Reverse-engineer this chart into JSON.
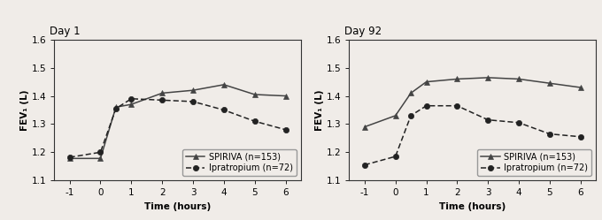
{
  "day1": {
    "title": "Day 1",
    "spiriva_x": [
      -1,
      0,
      0.5,
      1,
      2,
      3,
      4,
      5,
      6
    ],
    "spiriva_y": [
      1.178,
      1.178,
      1.36,
      1.37,
      1.41,
      1.42,
      1.44,
      1.405,
      1.4
    ],
    "ipra_x": [
      -1,
      0,
      0.5,
      1,
      2,
      3,
      4,
      5,
      6
    ],
    "ipra_y": [
      1.182,
      1.2,
      1.355,
      1.39,
      1.385,
      1.38,
      1.35,
      1.31,
      1.28
    ],
    "ylim": [
      1.1,
      1.6
    ],
    "yticks": [
      1.1,
      1.2,
      1.3,
      1.4,
      1.5,
      1.6
    ],
    "xticks": [
      -1,
      0,
      1,
      2,
      3,
      4,
      5,
      6
    ],
    "xlabel": "Time (hours)",
    "ylabel": "FEV₁ (L)"
  },
  "day92": {
    "title": "Day 92",
    "spiriva_x": [
      -1,
      0,
      0.5,
      1,
      2,
      3,
      4,
      5,
      6
    ],
    "spiriva_y": [
      1.29,
      1.33,
      1.41,
      1.45,
      1.46,
      1.465,
      1.46,
      1.445,
      1.43
    ],
    "ipra_x": [
      -1,
      0,
      0.5,
      1,
      2,
      3,
      4,
      5,
      6
    ],
    "ipra_y": [
      1.155,
      1.185,
      1.33,
      1.365,
      1.365,
      1.315,
      1.305,
      1.265,
      1.255
    ],
    "ylim": [
      1.1,
      1.6
    ],
    "yticks": [
      1.1,
      1.2,
      1.3,
      1.4,
      1.5,
      1.6
    ],
    "xticks": [
      -1,
      0,
      1,
      2,
      3,
      4,
      5,
      6
    ],
    "xlabel": "Time (hours)",
    "ylabel": "FEV₁ (L)"
  },
  "spiriva_label": "SPIRIVA (n=153)",
  "ipra_label": "Ipratropium (n=72)",
  "spiriva_color": "#444444",
  "ipra_color": "#222222",
  "bg_color": "#f0ece8",
  "plot_bg": "#f0ece8",
  "font_size": 7.5,
  "title_fontsize": 8.5,
  "xlim": [
    -1.5,
    6.5
  ]
}
